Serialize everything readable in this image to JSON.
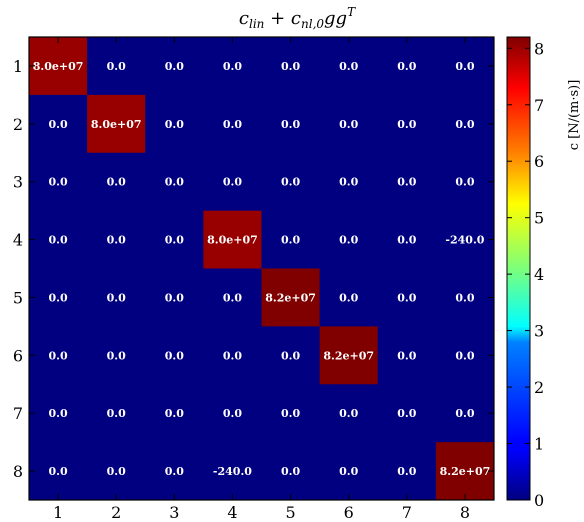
{
  "chart_data": {
    "type": "heatmap",
    "title": "c_lin + c_nl,0 g g^T",
    "colorbar_label": "c [N/(m·s)]",
    "rows": [
      "1",
      "2",
      "3",
      "4",
      "5",
      "6",
      "7",
      "8"
    ],
    "cols": [
      "1",
      "2",
      "3",
      "4",
      "5",
      "6",
      "7",
      "8"
    ],
    "values": [
      [
        80000000.0,
        0,
        0,
        0,
        0,
        0,
        0,
        0
      ],
      [
        0,
        80000000.0,
        0,
        0,
        0,
        0,
        0,
        0
      ],
      [
        0,
        0,
        0,
        0,
        0,
        0,
        0,
        0
      ],
      [
        0,
        0,
        0,
        80000000.0,
        0,
        0,
        0,
        -240.0
      ],
      [
        0,
        0,
        0,
        0,
        82000000.0,
        0,
        0,
        0
      ],
      [
        0,
        0,
        0,
        0,
        0,
        82000000.0,
        0,
        0
      ],
      [
        0,
        0,
        0,
        0,
        0,
        0,
        0,
        0
      ],
      [
        0,
        0,
        0,
        -240.0,
        0,
        0,
        0,
        82000000.0
      ]
    ],
    "labels": [
      [
        "8.0e+07",
        "0.0",
        "0.0",
        "0.0",
        "0.0",
        "0.0",
        "0.0",
        "0.0"
      ],
      [
        "0.0",
        "8.0e+07",
        "0.0",
        "0.0",
        "0.0",
        "0.0",
        "0.0",
        "0.0"
      ],
      [
        "0.0",
        "0.0",
        "0.0",
        "0.0",
        "0.0",
        "0.0",
        "0.0",
        "0.0"
      ],
      [
        "0.0",
        "0.0",
        "0.0",
        "8.0e+07",
        "0.0",
        "0.0",
        "0.0",
        "-240.0"
      ],
      [
        "0.0",
        "0.0",
        "0.0",
        "0.0",
        "8.2e+07",
        "0.0",
        "0.0",
        "0.0"
      ],
      [
        "0.0",
        "0.0",
        "0.0",
        "0.0",
        "0.0",
        "8.2e+07",
        "0.0",
        "0.0"
      ],
      [
        "0.0",
        "0.0",
        "0.0",
        "0.0",
        "0.0",
        "0.0",
        "0.0",
        "0.0"
      ],
      [
        "0.0",
        "0.0",
        "0.0",
        "-240.0",
        "0.0",
        "0.0",
        "0.0",
        "8.2e+07"
      ]
    ],
    "colorbar": {
      "vmin": 0,
      "vmax": 82000000,
      "ticks": [
        "0",
        "1",
        "2",
        "3",
        "4",
        "5",
        "6",
        "7",
        "8"
      ],
      "colormap": "jet"
    }
  }
}
